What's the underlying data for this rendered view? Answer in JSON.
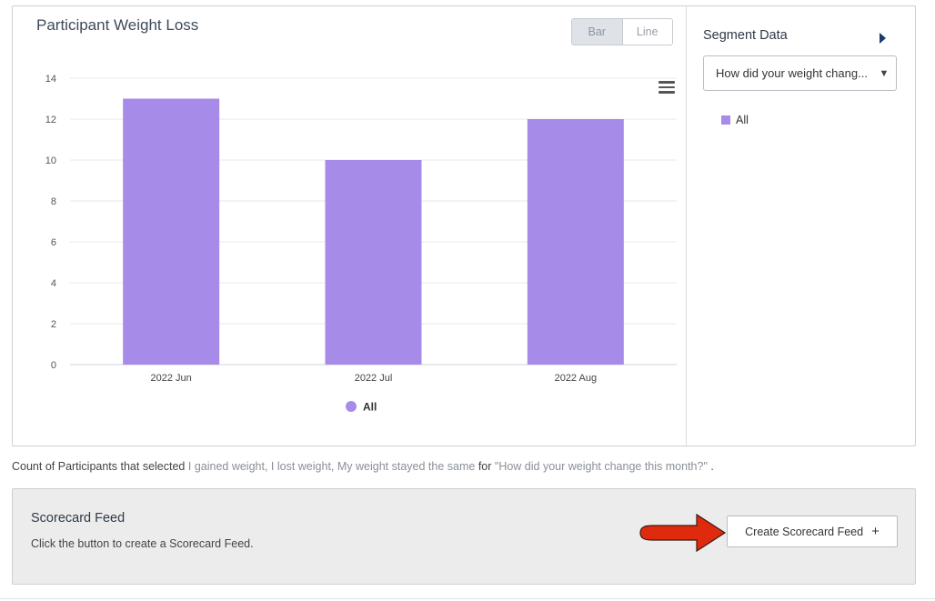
{
  "chart": {
    "title": "Participant Weight Loss",
    "toggle": {
      "bar_label": "Bar",
      "line_label": "Line",
      "active": "Bar"
    },
    "menu_icon": "hamburger-menu-icon"
  },
  "chart_data": {
    "type": "bar",
    "title": "Participant Weight Loss",
    "categories": [
      "2022 Jun",
      "2022 Jul",
      "2022 Aug"
    ],
    "series": [
      {
        "name": "All",
        "values": [
          13,
          10,
          12
        ],
        "color": "#a78be8"
      }
    ],
    "ylim": [
      0,
      14
    ],
    "yticks": [
      0,
      2,
      4,
      6,
      8,
      10,
      12,
      14
    ],
    "xlabel": "",
    "ylabel": "",
    "grid": true,
    "legend_position": "bottom-center"
  },
  "segment": {
    "title": "Segment Data",
    "select_value": "How did your weight chang...",
    "legend_label": "All",
    "legend_color": "#a78be8",
    "expand_icon": "caret-right-icon"
  },
  "caption": {
    "prefix": "Count of Participants that selected",
    "options": "I gained weight, I lost weight, My weight stayed the same",
    "for_word": "for",
    "question": "\"How did your weight change this month?\"",
    "suffix": "."
  },
  "feed": {
    "title": "Scorecard Feed",
    "description": "Click the button to create a Scorecard Feed.",
    "button_label": "Create Scorecard Feed",
    "button_icon": "plus-icon",
    "annotation_color": "#e02a0e"
  }
}
